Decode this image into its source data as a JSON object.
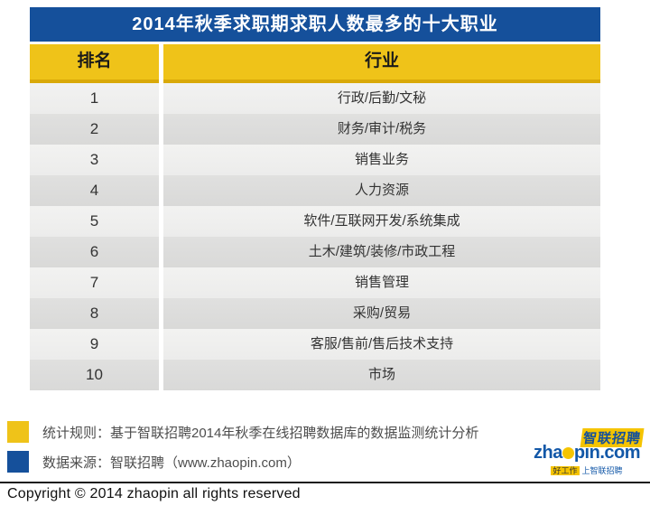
{
  "chart_data": {
    "type": "table",
    "title": "2014年秋季求职期求职人数最多的十大职业",
    "columns": [
      "排名",
      "行业"
    ],
    "rows": [
      [
        "1",
        "行政/后勤/文秘"
      ],
      [
        "2",
        "财务/审计/税务"
      ],
      [
        "3",
        "销售业务"
      ],
      [
        "4",
        "人力资源"
      ],
      [
        "5",
        "软件/互联网开发/系统集成"
      ],
      [
        "6",
        "土木/建筑/装修/市政工程"
      ],
      [
        "7",
        "销售管理"
      ],
      [
        "8",
        "采购/贸易"
      ],
      [
        "9",
        "客服/售前/售后技术支持"
      ],
      [
        "10",
        "市场"
      ]
    ],
    "layout": "two-column ranking table, alternating light/dark gray rows, blue title bar, yellow header row"
  },
  "notes": [
    {
      "marker_color": "#EFC319",
      "text": "统计规则：基于智联招聘2014年秋季在线招聘数据库的数据监测统计分析"
    },
    {
      "marker_color": "#15509B",
      "text": "数据来源：智联招聘（www.zhaopin.com）"
    }
  ],
  "logo": {
    "cn": "智联招聘",
    "domain_pre": "zha",
    "domain_post": "pin.com",
    "tagline_left": "好工作",
    "tagline_right": "上智联招聘"
  },
  "copyright": "Copyright © 2014 zhaopin all rights reserved",
  "colors": {
    "title_bar_blue": "#15509B",
    "header_yellow": "#EFC319",
    "header_yellow_edge": "#D9A908",
    "row_light": "#F0F0EF",
    "row_dark": "#DCDCDB",
    "logo_blue": "#1358A8",
    "logo_yellow": "#F5C400"
  }
}
